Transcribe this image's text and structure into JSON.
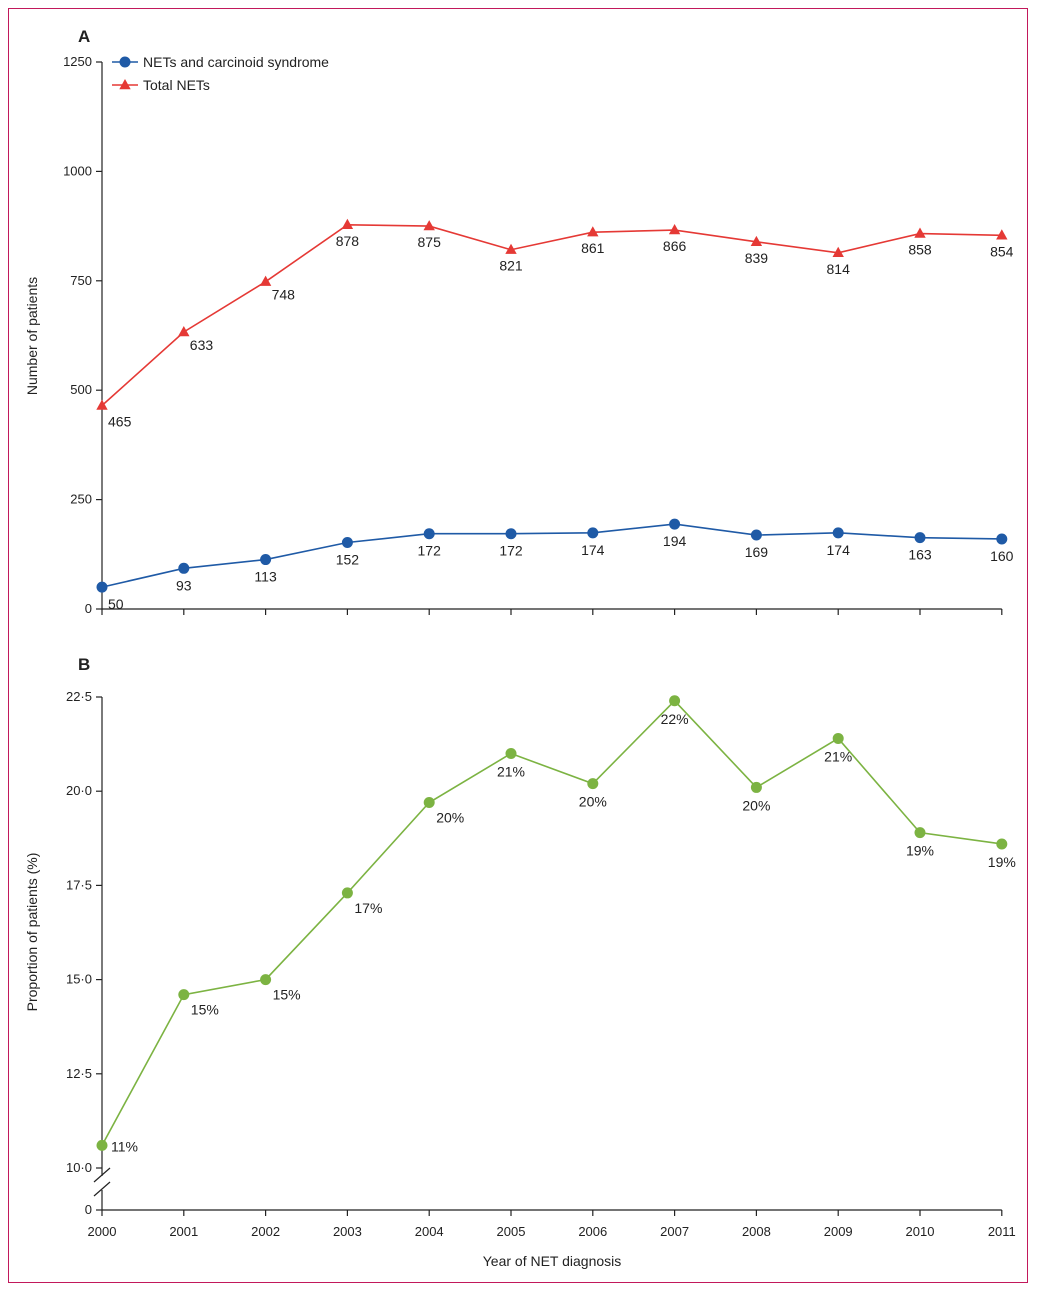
{
  "chart_data": [
    {
      "panel_label": "A",
      "type": "line",
      "ylabel": "Number of patients",
      "ylim": [
        0,
        1250
      ],
      "yticks": [
        0,
        250,
        500,
        750,
        1000,
        1250
      ],
      "ytick_labels": [
        "0",
        "250",
        "500",
        "750",
        "1000",
        "1250"
      ],
      "x": [
        2000,
        2001,
        2002,
        2003,
        2004,
        2005,
        2006,
        2007,
        2008,
        2009,
        2010,
        2011
      ],
      "legend_position": "top-left",
      "series": [
        {
          "name": "NETs and carcinoid syndrome",
          "color": "#1f5aa6",
          "marker": "circle",
          "values": [
            50,
            93,
            113,
            152,
            172,
            172,
            174,
            194,
            169,
            174,
            163,
            160
          ],
          "labels": [
            "50",
            "93",
            "113",
            "152",
            "172",
            "172",
            "174",
            "194",
            "169",
            "174",
            "163",
            "160"
          ]
        },
        {
          "name": "Total NETs",
          "color": "#e53935",
          "marker": "triangle",
          "values": [
            465,
            633,
            748,
            878,
            875,
            821,
            861,
            866,
            839,
            814,
            858,
            854
          ],
          "labels": [
            "465",
            "633",
            "748",
            "878",
            "875",
            "821",
            "861",
            "866",
            "839",
            "814",
            "858",
            "854"
          ]
        }
      ]
    },
    {
      "panel_label": "B",
      "type": "line",
      "xlabel": "Year of NET diagnosis",
      "ylabel": "Proportion of patients (%)",
      "ylim": [
        10,
        22.5
      ],
      "axis_break": true,
      "yticks": [
        10,
        12.5,
        15,
        17.5,
        20,
        22.5
      ],
      "ytick_labels": [
        "0",
        "10·0",
        "12·5",
        "15·0",
        "17·5",
        "20·0",
        "22·5"
      ],
      "x": [
        2000,
        2001,
        2002,
        2003,
        2004,
        2005,
        2006,
        2007,
        2008,
        2009,
        2010,
        2011
      ],
      "xtick_labels": [
        "2000",
        "2001",
        "2002",
        "2003",
        "2004",
        "2005",
        "2006",
        "2007",
        "2008",
        "2009",
        "2010",
        "2011"
      ],
      "series": [
        {
          "color": "#7cb342",
          "marker": "circle",
          "values": [
            10.6,
            14.6,
            15.0,
            17.3,
            19.7,
            21.0,
            20.2,
            22.4,
            20.1,
            21.4,
            18.9,
            18.6
          ],
          "labels": [
            "11%",
            "15%",
            "15%",
            "17%",
            "20%",
            "21%",
            "20%",
            "22%",
            "20%",
            "21%",
            "19%",
            "19%"
          ]
        }
      ]
    }
  ]
}
